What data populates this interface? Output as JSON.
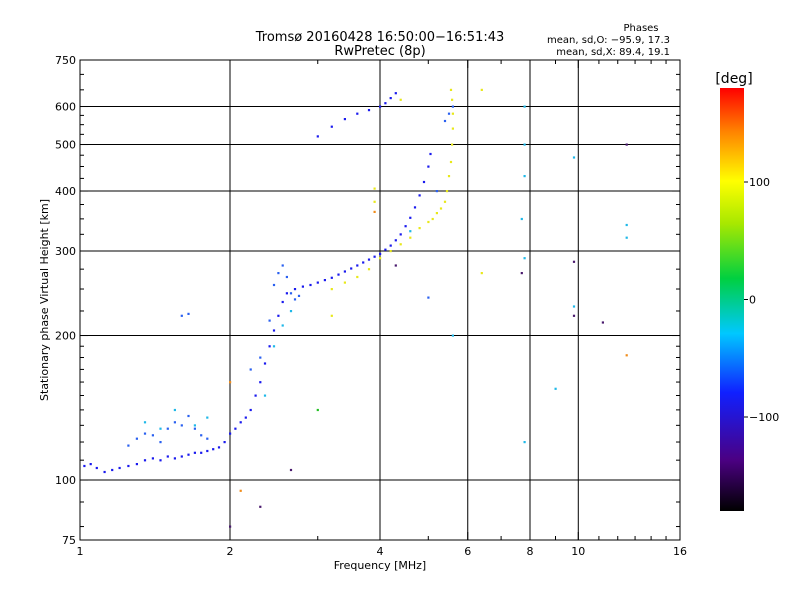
{
  "chart_data": {
    "type": "scatter",
    "title": "Tromsø 20160428 16:50:00−16:51:43",
    "subtitle": "RwPretec (8p)",
    "stats_heading": "Phases",
    "stats_line1": "mean, sd,O: −95.9, 17.3",
    "stats_line2": "mean, sd,X:  89.4, 19.1",
    "xlabel": "Frequency [MHz]",
    "ylabel": "Stationary phase Virtual Height [km]",
    "x_scale": "log2",
    "y_scale": "log",
    "xlim": [
      1,
      16
    ],
    "ylim": [
      75,
      750
    ],
    "x_ticks": [
      1,
      2,
      4,
      6,
      8,
      10,
      16
    ],
    "x_tick_labels": [
      "1",
      "2",
      "4",
      "6",
      "8",
      "10",
      "16"
    ],
    "y_ticks": [
      75,
      100,
      200,
      300,
      400,
      500,
      600,
      750
    ],
    "y_tick_labels": [
      "75",
      "100",
      "200",
      "300",
      "400",
      "500",
      "600",
      "750"
    ],
    "x_gridlines": [
      2,
      4,
      6,
      8,
      10
    ],
    "y_gridlines": [
      100,
      200,
      300,
      400,
      500,
      600
    ],
    "grid": true,
    "colorbar": {
      "label": "[deg]",
      "range": [
        -180,
        180
      ],
      "tick_values": [
        100,
        0,
        -100
      ],
      "tick_labels": [
        "100",
        "0",
        "−100"
      ]
    },
    "series": [
      {
        "phase_deg": -115,
        "color": "#1a1aee",
        "points": [
          [
            1.02,
            107
          ],
          [
            1.05,
            108
          ],
          [
            1.08,
            106
          ],
          [
            1.12,
            104
          ],
          [
            1.16,
            105
          ],
          [
            1.2,
            106
          ],
          [
            1.25,
            107
          ],
          [
            1.3,
            108
          ],
          [
            1.35,
            110
          ],
          [
            1.4,
            111
          ],
          [
            1.45,
            110
          ],
          [
            1.5,
            112
          ],
          [
            1.55,
            111
          ],
          [
            1.6,
            112
          ],
          [
            1.65,
            113
          ],
          [
            1.7,
            114
          ],
          [
            1.75,
            114
          ],
          [
            1.8,
            115
          ],
          [
            1.85,
            116
          ],
          [
            1.9,
            117
          ],
          [
            1.95,
            120
          ],
          [
            2.0,
            125
          ],
          [
            2.05,
            128
          ],
          [
            2.1,
            132
          ],
          [
            2.15,
            135
          ],
          [
            2.2,
            140
          ],
          [
            2.25,
            150
          ],
          [
            2.3,
            160
          ],
          [
            2.35,
            175
          ],
          [
            2.4,
            190
          ],
          [
            2.45,
            205
          ],
          [
            2.5,
            220
          ],
          [
            2.55,
            235
          ],
          [
            2.6,
            245
          ],
          [
            2.7,
            250
          ],
          [
            2.8,
            253
          ],
          [
            2.9,
            255
          ],
          [
            3.0,
            258
          ],
          [
            3.1,
            261
          ],
          [
            3.2,
            264
          ],
          [
            3.3,
            268
          ],
          [
            3.4,
            272
          ],
          [
            3.5,
            276
          ],
          [
            3.6,
            280
          ],
          [
            3.7,
            284
          ],
          [
            3.8,
            288
          ],
          [
            3.9,
            292
          ],
          [
            4.0,
            296
          ],
          [
            4.1,
            302
          ],
          [
            4.2,
            308
          ],
          [
            4.3,
            316
          ],
          [
            4.4,
            325
          ],
          [
            4.5,
            338
          ],
          [
            4.6,
            352
          ],
          [
            4.7,
            370
          ],
          [
            4.8,
            392
          ],
          [
            4.9,
            418
          ],
          [
            5.0,
            450
          ],
          [
            5.05,
            478
          ],
          [
            3.0,
            520
          ],
          [
            3.2,
            545
          ],
          [
            3.4,
            565
          ],
          [
            3.6,
            580
          ],
          [
            3.8,
            590
          ],
          [
            4.0,
            600
          ],
          [
            4.1,
            610
          ],
          [
            4.2,
            625
          ],
          [
            4.3,
            640
          ]
        ]
      },
      {
        "phase_deg": -95,
        "color": "#2a60f0",
        "points": [
          [
            1.25,
            118
          ],
          [
            1.3,
            122
          ],
          [
            1.35,
            125
          ],
          [
            1.4,
            124
          ],
          [
            1.45,
            120
          ],
          [
            1.5,
            128
          ],
          [
            1.55,
            132
          ],
          [
            1.6,
            130
          ],
          [
            1.65,
            136
          ],
          [
            1.7,
            128
          ],
          [
            1.75,
            124
          ],
          [
            1.8,
            122
          ],
          [
            2.2,
            170
          ],
          [
            2.3,
            180
          ],
          [
            2.4,
            215
          ],
          [
            2.45,
            255
          ],
          [
            2.5,
            270
          ],
          [
            2.55,
            280
          ],
          [
            2.6,
            265
          ],
          [
            2.65,
            245
          ],
          [
            2.7,
            238
          ],
          [
            2.75,
            242
          ],
          [
            1.6,
            220
          ],
          [
            1.65,
            222
          ],
          [
            5.0,
            240
          ],
          [
            5.2,
            400
          ],
          [
            5.4,
            560
          ],
          [
            5.5,
            580
          ],
          [
            5.6,
            600
          ]
        ]
      },
      {
        "phase_deg": -70,
        "color": "#1fb8e8",
        "points": [
          [
            1.35,
            132
          ],
          [
            1.45,
            128
          ],
          [
            1.55,
            140
          ],
          [
            1.7,
            130
          ],
          [
            1.8,
            135
          ],
          [
            2.35,
            150
          ],
          [
            2.45,
            190
          ],
          [
            2.55,
            210
          ],
          [
            2.65,
            225
          ],
          [
            4.6,
            330
          ],
          [
            5.6,
            200
          ],
          [
            7.8,
            500
          ],
          [
            7.8,
            600
          ],
          [
            7.8,
            430
          ],
          [
            7.8,
            290
          ],
          [
            9.8,
            470
          ],
          [
            9.8,
            230
          ],
          [
            7.7,
            350
          ],
          [
            7.8,
            120
          ],
          [
            9.0,
            155
          ],
          [
            12.5,
            340
          ],
          [
            12.5,
            320
          ]
        ]
      },
      {
        "phase_deg": 100,
        "color": "#e8e81a",
        "points": [
          [
            3.2,
            250
          ],
          [
            3.4,
            258
          ],
          [
            3.6,
            265
          ],
          [
            3.8,
            275
          ],
          [
            4.0,
            290
          ],
          [
            4.2,
            300
          ],
          [
            4.4,
            310
          ],
          [
            4.6,
            320
          ],
          [
            4.8,
            335
          ],
          [
            5.0,
            345
          ],
          [
            5.1,
            350
          ],
          [
            5.2,
            360
          ],
          [
            5.3,
            368
          ],
          [
            5.4,
            380
          ],
          [
            5.45,
            400
          ],
          [
            5.5,
            430
          ],
          [
            5.55,
            460
          ],
          [
            5.58,
            500
          ],
          [
            5.6,
            540
          ],
          [
            5.6,
            580
          ],
          [
            5.58,
            620
          ],
          [
            5.55,
            650
          ],
          [
            4.4,
            620
          ],
          [
            6.4,
            650
          ],
          [
            6.4,
            270
          ],
          [
            3.9,
            405
          ],
          [
            3.9,
            380
          ],
          [
            3.2,
            220
          ]
        ]
      },
      {
        "phase_deg": 40,
        "color": "#22c022",
        "points": [
          [
            3.0,
            140
          ]
        ]
      },
      {
        "phase_deg": 150,
        "color": "#f08c1a",
        "points": [
          [
            2.1,
            95
          ],
          [
            2.0,
            160
          ],
          [
            12.5,
            182
          ],
          [
            3.9,
            362
          ]
        ]
      },
      {
        "phase_deg": -150,
        "color": "#4a1a6e",
        "points": [
          [
            9.8,
            285
          ],
          [
            9.8,
            220
          ],
          [
            7.7,
            270
          ],
          [
            11.2,
            213
          ],
          [
            12.5,
            500
          ],
          [
            4.3,
            280
          ],
          [
            2.65,
            105
          ],
          [
            2.3,
            88
          ],
          [
            2.0,
            80
          ]
        ]
      }
    ]
  }
}
